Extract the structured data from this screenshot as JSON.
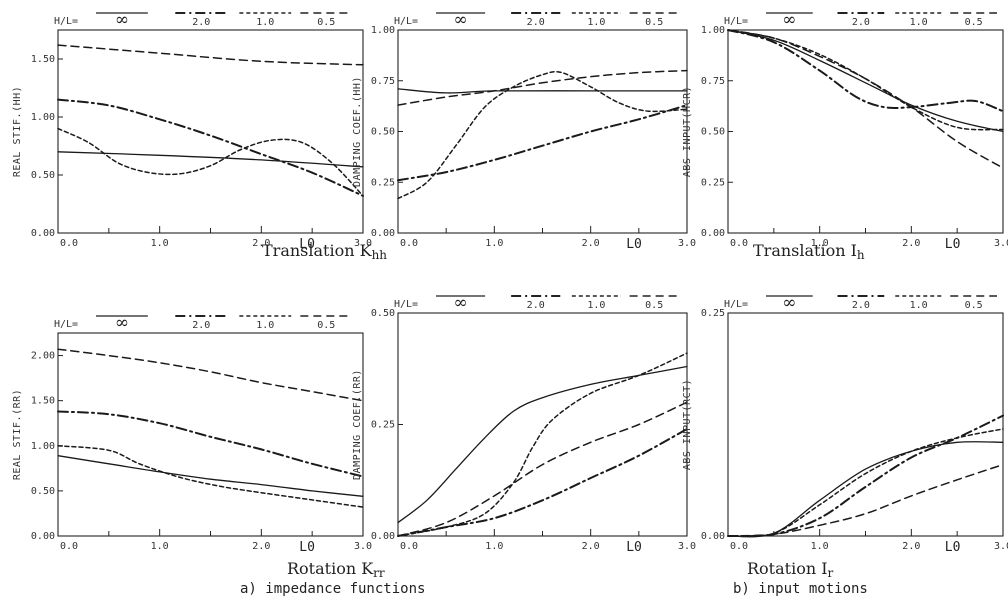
{
  "legend": {
    "prefix": "H/L=",
    "entries": [
      {
        "label": "∞",
        "style": "solid"
      },
      {
        "label": "2.0",
        "style": "dashdot"
      },
      {
        "label": "1.0",
        "style": "dotted"
      },
      {
        "label": "0.5",
        "style": "dashed"
      }
    ]
  },
  "x_mark": "L0",
  "captions": {
    "kh_main": "Translation K",
    "kh_sub": "hh",
    "ih_main": "Translation I",
    "ih_sub": "h",
    "kr_main": "Rotation K",
    "kr_sub": "rr",
    "ir_main": "Rotation I",
    "ir_sub": "r",
    "group_a": "a) impedance functions",
    "group_b": "b) input motions"
  },
  "chart_data": [
    {
      "type": "line",
      "id": "p1",
      "ylabel": "REAL STIF.(HH)",
      "xlim": [
        0,
        3
      ],
      "ylim": [
        0,
        1.75
      ],
      "xticks": [
        "0.0",
        "1.0",
        "2.0",
        "3.0"
      ],
      "yticks": [
        "0.00",
        "0.50",
        "1.00",
        "1.50"
      ],
      "ytick_values": [
        0,
        0.5,
        1.0,
        1.5
      ],
      "series": [
        {
          "name": "∞",
          "style": "solid",
          "points": [
            [
              0,
              0.7
            ],
            [
              1.0,
              0.67
            ],
            [
              2.0,
              0.63
            ],
            [
              3.0,
              0.57
            ]
          ]
        },
        {
          "name": "2.0",
          "style": "dashdot",
          "points": [
            [
              0,
              1.15
            ],
            [
              0.5,
              1.1
            ],
            [
              1.0,
              0.98
            ],
            [
              1.5,
              0.84
            ],
            [
              2.0,
              0.68
            ],
            [
              2.5,
              0.52
            ],
            [
              3.0,
              0.32
            ]
          ]
        },
        {
          "name": "1.0",
          "style": "dotted",
          "points": [
            [
              0,
              0.9
            ],
            [
              0.3,
              0.78
            ],
            [
              0.6,
              0.6
            ],
            [
              0.9,
              0.52
            ],
            [
              1.2,
              0.51
            ],
            [
              1.5,
              0.58
            ],
            [
              1.8,
              0.72
            ],
            [
              2.1,
              0.8
            ],
            [
              2.4,
              0.78
            ],
            [
              2.7,
              0.6
            ],
            [
              3.0,
              0.32
            ]
          ]
        },
        {
          "name": "0.5",
          "style": "dashed",
          "points": [
            [
              0,
              1.62
            ],
            [
              1.0,
              1.55
            ],
            [
              2.0,
              1.48
            ],
            [
              3.0,
              1.45
            ]
          ]
        }
      ]
    },
    {
      "type": "line",
      "id": "p2",
      "ylabel": "DAMPING COEF.(HH)",
      "xlim": [
        0,
        3
      ],
      "ylim": [
        0,
        1.0
      ],
      "xticks": [
        "0.0",
        "1.0",
        "2.0",
        "3.0"
      ],
      "yticks": [
        "0.00",
        "0.25",
        "0.50",
        "0.75",
        "1.00"
      ],
      "ytick_values": [
        0,
        0.25,
        0.5,
        0.75,
        1.0
      ],
      "series": [
        {
          "name": "∞",
          "style": "solid",
          "points": [
            [
              0,
              0.71
            ],
            [
              0.5,
              0.69
            ],
            [
              1.0,
              0.7
            ],
            [
              2.0,
              0.7
            ],
            [
              3.0,
              0.7
            ]
          ]
        },
        {
          "name": "2.0",
          "style": "dashdot",
          "points": [
            [
              0,
              0.26
            ],
            [
              0.5,
              0.3
            ],
            [
              1.0,
              0.36
            ],
            [
              1.5,
              0.43
            ],
            [
              2.0,
              0.5
            ],
            [
              2.5,
              0.56
            ],
            [
              3.0,
              0.63
            ]
          ]
        },
        {
          "name": "1.0",
          "style": "dotted",
          "points": [
            [
              0,
              0.17
            ],
            [
              0.3,
              0.25
            ],
            [
              0.6,
              0.43
            ],
            [
              0.9,
              0.62
            ],
            [
              1.2,
              0.72
            ],
            [
              1.5,
              0.78
            ],
            [
              1.7,
              0.79
            ],
            [
              2.0,
              0.72
            ],
            [
              2.3,
              0.64
            ],
            [
              2.6,
              0.6
            ],
            [
              3.0,
              0.61
            ]
          ]
        },
        {
          "name": "0.5",
          "style": "dashed",
          "points": [
            [
              0,
              0.63
            ],
            [
              0.5,
              0.67
            ],
            [
              1.0,
              0.7
            ],
            [
              1.5,
              0.74
            ],
            [
              2.0,
              0.77
            ],
            [
              2.5,
              0.79
            ],
            [
              3.0,
              0.8
            ]
          ]
        }
      ]
    },
    {
      "type": "line",
      "id": "p3",
      "ylabel": "ABS INPUT(HCR)",
      "xlim": [
        0,
        3
      ],
      "ylim": [
        0,
        1.0
      ],
      "xticks": [
        "0.0",
        "1.0",
        "2.0",
        "3.0"
      ],
      "yticks": [
        "0.00",
        "0.25",
        "0.50",
        "0.75",
        "1.00"
      ],
      "ytick_values": [
        0,
        0.25,
        0.5,
        0.75,
        1.0
      ],
      "series": [
        {
          "name": "∞",
          "style": "solid",
          "points": [
            [
              0,
              1.0
            ],
            [
              0.5,
              0.95
            ],
            [
              1.0,
              0.85
            ],
            [
              1.5,
              0.74
            ],
            [
              2.0,
              0.63
            ],
            [
              2.5,
              0.55
            ],
            [
              3.0,
              0.5
            ]
          ]
        },
        {
          "name": "2.0",
          "style": "dashdot",
          "points": [
            [
              0,
              1.0
            ],
            [
              0.5,
              0.94
            ],
            [
              1.0,
              0.8
            ],
            [
              1.4,
              0.67
            ],
            [
              1.7,
              0.62
            ],
            [
              2.0,
              0.62
            ],
            [
              2.4,
              0.64
            ],
            [
              2.7,
              0.65
            ],
            [
              3.0,
              0.6
            ]
          ]
        },
        {
          "name": "1.0",
          "style": "dotted",
          "points": [
            [
              0,
              1.0
            ],
            [
              0.5,
              0.96
            ],
            [
              1.0,
              0.88
            ],
            [
              1.5,
              0.76
            ],
            [
              2.0,
              0.62
            ],
            [
              2.5,
              0.52
            ],
            [
              3.0,
              0.51
            ]
          ]
        },
        {
          "name": "0.5",
          "style": "dashed",
          "points": [
            [
              0,
              1.0
            ],
            [
              0.5,
              0.96
            ],
            [
              1.0,
              0.87
            ],
            [
              1.5,
              0.76
            ],
            [
              2.0,
              0.62
            ],
            [
              2.5,
              0.45
            ],
            [
              3.0,
              0.32
            ]
          ]
        }
      ]
    },
    {
      "type": "line",
      "id": "p4",
      "ylabel": "REAL STIF.(RR)",
      "xlim": [
        0,
        3
      ],
      "ylim": [
        0,
        2.25
      ],
      "xticks": [
        "0.0",
        "1.0",
        "2.0",
        "3.0"
      ],
      "yticks": [
        "0.00",
        "0.50",
        "1.00",
        "1.50",
        "2.00"
      ],
      "ytick_values": [
        0,
        0.5,
        1.0,
        1.5,
        2.0
      ],
      "series": [
        {
          "name": "∞",
          "style": "solid",
          "points": [
            [
              0,
              0.89
            ],
            [
              0.5,
              0.8
            ],
            [
              1.0,
              0.71
            ],
            [
              1.5,
              0.63
            ],
            [
              2.0,
              0.57
            ],
            [
              2.5,
              0.5
            ],
            [
              3.0,
              0.44
            ]
          ]
        },
        {
          "name": "2.0",
          "style": "dashdot",
          "points": [
            [
              0,
              1.38
            ],
            [
              0.5,
              1.35
            ],
            [
              1.0,
              1.25
            ],
            [
              1.5,
              1.1
            ],
            [
              2.0,
              0.96
            ],
            [
              2.5,
              0.8
            ],
            [
              3.0,
              0.66
            ]
          ]
        },
        {
          "name": "1.0",
          "style": "dotted",
          "points": [
            [
              0,
              1.0
            ],
            [
              0.5,
              0.95
            ],
            [
              0.8,
              0.8
            ],
            [
              1.2,
              0.65
            ],
            [
              1.6,
              0.55
            ],
            [
              2.0,
              0.48
            ],
            [
              2.5,
              0.4
            ],
            [
              3.0,
              0.32
            ]
          ]
        },
        {
          "name": "0.5",
          "style": "dashed",
          "points": [
            [
              0,
              2.07
            ],
            [
              0.5,
              2.0
            ],
            [
              1.0,
              1.92
            ],
            [
              1.5,
              1.82
            ],
            [
              2.0,
              1.7
            ],
            [
              2.5,
              1.6
            ],
            [
              3.0,
              1.5
            ]
          ]
        }
      ]
    },
    {
      "type": "line",
      "id": "p5",
      "ylabel": "DAMPING COEF.(RR)",
      "xlim": [
        0,
        3
      ],
      "ylim": [
        0,
        0.5
      ],
      "xticks": [
        "0.0",
        "1.0",
        "2.0",
        "3.0"
      ],
      "yticks": [
        "0.00",
        "0.25",
        "0.50"
      ],
      "ytick_values": [
        0,
        0.25,
        0.5
      ],
      "series": [
        {
          "name": "∞",
          "style": "solid",
          "points": [
            [
              0,
              0.03
            ],
            [
              0.3,
              0.08
            ],
            [
              0.6,
              0.15
            ],
            [
              0.9,
              0.22
            ],
            [
              1.2,
              0.28
            ],
            [
              1.5,
              0.31
            ],
            [
              2.0,
              0.34
            ],
            [
              2.5,
              0.36
            ],
            [
              3.0,
              0.38
            ]
          ]
        },
        {
          "name": "2.0",
          "style": "dashdot",
          "points": [
            [
              0,
              0.0
            ],
            [
              0.5,
              0.02
            ],
            [
              1.0,
              0.04
            ],
            [
              1.5,
              0.08
            ],
            [
              2.0,
              0.13
            ],
            [
              2.5,
              0.18
            ],
            [
              3.0,
              0.24
            ]
          ]
        },
        {
          "name": "1.0",
          "style": "dotted",
          "points": [
            [
              0,
              0.0
            ],
            [
              0.5,
              0.02
            ],
            [
              0.9,
              0.05
            ],
            [
              1.2,
              0.12
            ],
            [
              1.4,
              0.2
            ],
            [
              1.6,
              0.26
            ],
            [
              2.0,
              0.32
            ],
            [
              2.5,
              0.36
            ],
            [
              3.0,
              0.41
            ]
          ]
        },
        {
          "name": "0.5",
          "style": "dashed",
          "points": [
            [
              0,
              0.0
            ],
            [
              0.5,
              0.03
            ],
            [
              1.0,
              0.09
            ],
            [
              1.5,
              0.16
            ],
            [
              2.0,
              0.21
            ],
            [
              2.5,
              0.25
            ],
            [
              3.0,
              0.3
            ]
          ]
        }
      ]
    },
    {
      "type": "line",
      "id": "p6",
      "ylabel": "ABS INPUT(RCT)",
      "xlim": [
        0,
        3
      ],
      "ylim": [
        0,
        0.25
      ],
      "xticks": [
        "0.0",
        "1.0",
        "2.0",
        "3.0"
      ],
      "yticks": [
        "0.00",
        "0.25"
      ],
      "ytick_values": [
        0,
        0.25
      ],
      "series": [
        {
          "name": "∞",
          "style": "solid",
          "points": [
            [
              0,
              0.0
            ],
            [
              0.5,
              0.003
            ],
            [
              1.0,
              0.04
            ],
            [
              1.5,
              0.075
            ],
            [
              2.0,
              0.095
            ],
            [
              2.5,
              0.105
            ],
            [
              3.0,
              0.105
            ]
          ]
        },
        {
          "name": "2.0",
          "style": "dashdot",
          "points": [
            [
              0,
              0.0
            ],
            [
              0.5,
              0.002
            ],
            [
              1.0,
              0.02
            ],
            [
              1.5,
              0.055
            ],
            [
              2.0,
              0.088
            ],
            [
              2.5,
              0.11
            ],
            [
              3.0,
              0.135
            ]
          ]
        },
        {
          "name": "1.0",
          "style": "dotted",
          "points": [
            [
              0,
              0.0
            ],
            [
              0.5,
              0.003
            ],
            [
              1.0,
              0.035
            ],
            [
              1.5,
              0.07
            ],
            [
              2.0,
              0.095
            ],
            [
              2.5,
              0.11
            ],
            [
              3.0,
              0.12
            ]
          ]
        },
        {
          "name": "0.5",
          "style": "dashed",
          "points": [
            [
              0,
              0.0
            ],
            [
              0.5,
              0.002
            ],
            [
              1.0,
              0.012
            ],
            [
              1.5,
              0.025
            ],
            [
              2.0,
              0.045
            ],
            [
              2.5,
              0.063
            ],
            [
              3.0,
              0.08
            ]
          ]
        }
      ]
    }
  ]
}
